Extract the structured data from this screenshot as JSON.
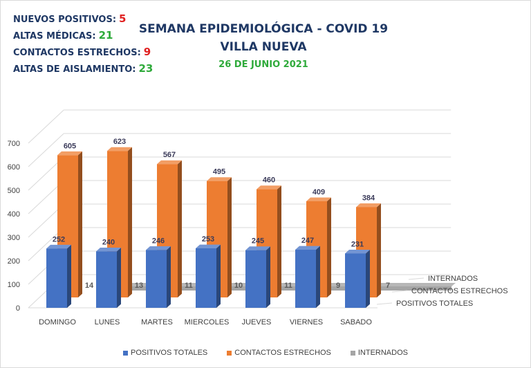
{
  "stats": [
    {
      "label": "NUEVOS POSITIVOS:",
      "value": "5",
      "color": "#e02020"
    },
    {
      "label": "ALTAS MÉDICAS:",
      "value": "21",
      "color": "#2eaa3a"
    },
    {
      "label": "CONTACTOS ESTRECHOS:",
      "value": "9",
      "color": "#e02020"
    },
    {
      "label": "ALTAS DE AISLAMIENTO:",
      "value": "23",
      "color": "#2eaa3a"
    }
  ],
  "title_line1": "SEMANA EPIDEMIOLÓGICA - COVID 19",
  "title_line2": "VILLA NUEVA",
  "date": "26 DE JUNIO 2021",
  "chart_data": {
    "type": "bar",
    "style": "3d",
    "categories": [
      "DOMINGO",
      "LUNES",
      "MARTES",
      "MIERCOLES",
      "JUEVES",
      "VIERNES",
      "SABADO"
    ],
    "series": [
      {
        "name": "POSITIVOS TOTALES",
        "values": [
          252,
          240,
          246,
          253,
          245,
          247,
          231
        ],
        "color": "#4472c4"
      },
      {
        "name": "CONTACTOS ESTRECHOS",
        "values": [
          605,
          623,
          567,
          495,
          460,
          409,
          384
        ],
        "color": "#ed7d31"
      },
      {
        "name": "INTERNADOS",
        "values": [
          14,
          13,
          11,
          10,
          11,
          9,
          7
        ],
        "color": "#a5a5a5"
      }
    ],
    "y_ticks": [
      0,
      100,
      200,
      300,
      400,
      500,
      600,
      700
    ],
    "ylim": [
      0,
      700
    ],
    "legend_position": "bottom"
  }
}
